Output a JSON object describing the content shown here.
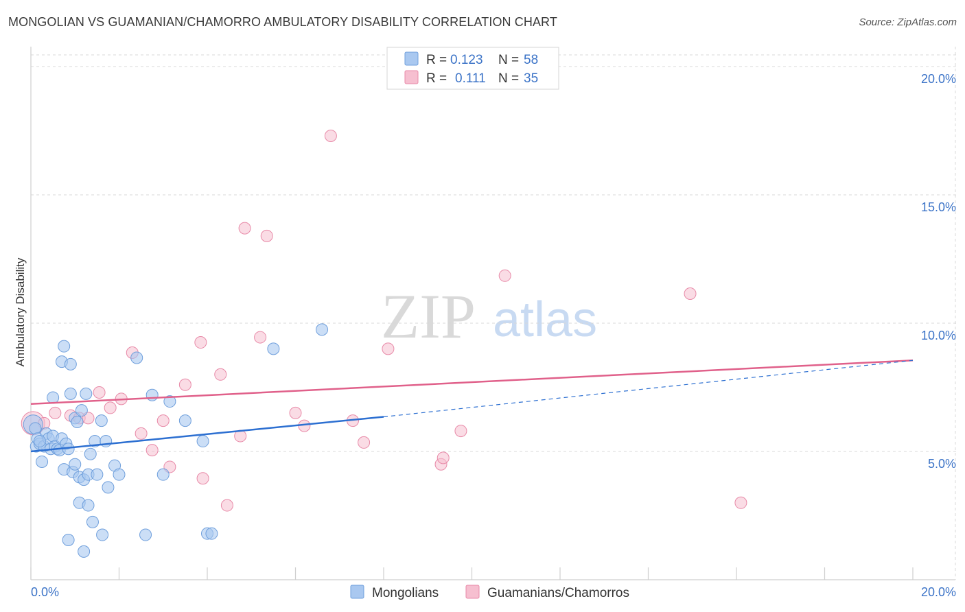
{
  "header": {
    "title": "MONGOLIAN VS GUAMANIAN/CHAMORRO AMBULATORY DISABILITY CORRELATION CHART",
    "source": "Source: ZipAtlas.com"
  },
  "watermark": {
    "zip": "ZIP",
    "atlas": "atlas"
  },
  "colors": {
    "blue_fill": "#a9c8f0",
    "blue_stroke": "#6f9fdc",
    "blue_line": "#2c6fd1",
    "pink_fill": "#f6bfd0",
    "pink_stroke": "#e88aa8",
    "pink_line": "#e0608a",
    "tick_text": "#3b73c7",
    "grid": "#d8d8d8"
  },
  "legend": {
    "rows": [
      {
        "r_label": "R =",
        "r_value": "0.123",
        "n_label": "N =",
        "n_value": "58"
      },
      {
        "r_label": "R =",
        "r_value": "0.111",
        "n_label": "N =",
        "n_value": "35"
      }
    ]
  },
  "chart_data": {
    "type": "scatter",
    "title": "MONGOLIAN VS GUAMANIAN/CHAMORRO AMBULATORY DISABILITY CORRELATION CHART",
    "xlabel": "",
    "ylabel": "Ambulatory Disability",
    "xlim": [
      0,
      20
    ],
    "ylim": [
      0,
      20
    ],
    "x_tick_labels": [
      "0.0%",
      "20.0%"
    ],
    "y_ticks": [
      5,
      10,
      15,
      20
    ],
    "y_tick_labels": [
      "5.0%",
      "10.0%",
      "15.0%",
      "20.0%"
    ],
    "grid": true,
    "legend_position": "top-center",
    "series": [
      {
        "name": "Mongolians",
        "r": 0.123,
        "n": 58,
        "trend": {
          "x_start": 0.0,
          "y_start": 5.0,
          "x_end": 8.0,
          "y_end": 6.35,
          "dashed_to_x": 20.0,
          "dashed_to_y": 8.55
        },
        "points": [
          [
            0.05,
            6.05
          ],
          [
            0.1,
            5.9
          ],
          [
            0.12,
            5.2
          ],
          [
            0.15,
            5.5
          ],
          [
            0.2,
            5.3
          ],
          [
            0.25,
            4.6
          ],
          [
            0.3,
            5.2
          ],
          [
            0.35,
            5.7
          ],
          [
            0.4,
            5.5
          ],
          [
            0.45,
            5.1
          ],
          [
            0.5,
            5.6
          ],
          [
            0.5,
            7.1
          ],
          [
            0.55,
            5.2
          ],
          [
            0.6,
            5.1
          ],
          [
            0.65,
            5.05
          ],
          [
            0.7,
            5.5
          ],
          [
            0.75,
            4.3
          ],
          [
            0.7,
            8.5
          ],
          [
            0.75,
            9.1
          ],
          [
            0.8,
            5.3
          ],
          [
            0.85,
            5.1
          ],
          [
            0.9,
            7.25
          ],
          [
            0.95,
            4.2
          ],
          [
            0.85,
            1.55
          ],
          [
            0.9,
            8.4
          ],
          [
            1.0,
            4.5
          ],
          [
            1.0,
            6.3
          ],
          [
            1.05,
            6.15
          ],
          [
            1.1,
            4.0
          ],
          [
            1.1,
            3.0
          ],
          [
            1.15,
            6.6
          ],
          [
            1.2,
            3.9
          ],
          [
            1.2,
            1.1
          ],
          [
            1.25,
            7.25
          ],
          [
            1.3,
            4.1
          ],
          [
            1.3,
            2.9
          ],
          [
            1.35,
            4.9
          ],
          [
            1.4,
            2.25
          ],
          [
            1.45,
            5.4
          ],
          [
            1.5,
            4.1
          ],
          [
            1.6,
            6.2
          ],
          [
            1.62,
            1.75
          ],
          [
            1.7,
            5.4
          ],
          [
            1.75,
            3.6
          ],
          [
            1.9,
            4.45
          ],
          [
            2.0,
            4.1
          ],
          [
            2.4,
            8.65
          ],
          [
            2.6,
            1.75
          ],
          [
            2.75,
            7.2
          ],
          [
            3.0,
            4.1
          ],
          [
            3.15,
            6.95
          ],
          [
            3.5,
            6.2
          ],
          [
            3.9,
            5.4
          ],
          [
            4.0,
            1.8
          ],
          [
            4.1,
            1.8
          ],
          [
            5.5,
            9.0
          ],
          [
            6.6,
            9.75
          ],
          [
            0.2,
            5.4
          ]
        ]
      },
      {
        "name": "Guamanians/Chamorros",
        "r": 0.111,
        "n": 35,
        "trend": {
          "x_start": 0.0,
          "y_start": 6.85,
          "x_end": 20.0,
          "y_end": 8.55
        },
        "points": [
          [
            0.05,
            6.1
          ],
          [
            0.3,
            6.1
          ],
          [
            0.55,
            6.5
          ],
          [
            0.9,
            6.4
          ],
          [
            1.1,
            6.3
          ],
          [
            1.3,
            6.3
          ],
          [
            1.55,
            7.3
          ],
          [
            1.8,
            6.7
          ],
          [
            2.05,
            7.05
          ],
          [
            2.3,
            8.85
          ],
          [
            2.5,
            5.7
          ],
          [
            2.75,
            5.05
          ],
          [
            3.0,
            6.2
          ],
          [
            3.15,
            4.4
          ],
          [
            3.5,
            7.6
          ],
          [
            3.85,
            9.25
          ],
          [
            3.9,
            3.95
          ],
          [
            4.3,
            8.0
          ],
          [
            4.45,
            2.9
          ],
          [
            4.75,
            5.6
          ],
          [
            4.85,
            13.7
          ],
          [
            5.2,
            9.45
          ],
          [
            5.35,
            13.4
          ],
          [
            6.0,
            6.5
          ],
          [
            6.2,
            6.0
          ],
          [
            6.8,
            17.3
          ],
          [
            7.3,
            6.2
          ],
          [
            7.55,
            5.35
          ],
          [
            8.1,
            9.0
          ],
          [
            9.3,
            4.5
          ],
          [
            9.35,
            4.75
          ],
          [
            9.75,
            5.8
          ],
          [
            10.75,
            11.85
          ],
          [
            14.95,
            11.15
          ],
          [
            16.1,
            3.0
          ]
        ]
      }
    ],
    "bottom_legend": [
      "Mongolians",
      "Guamanians/Chamorros"
    ]
  }
}
